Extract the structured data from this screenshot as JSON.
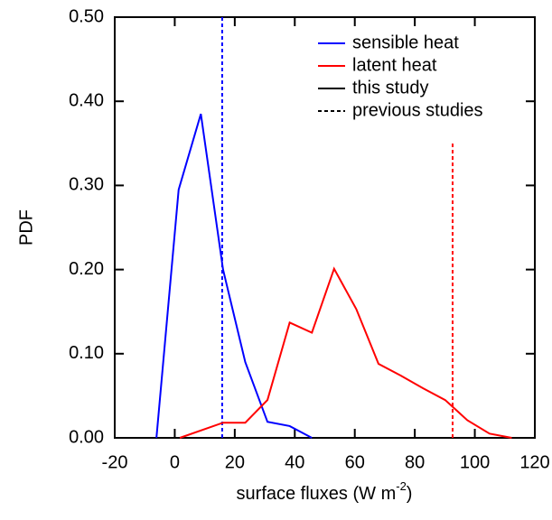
{
  "chart_data": {
    "type": "line",
    "x_label": {
      "text": "surface fluxes (W m",
      "superscript": "-2",
      "suffix": ")"
    },
    "y_label": "PDF",
    "series": [
      {
        "name": "sensible heat",
        "color": "#0000ff",
        "x": [
          -6.1,
          1.3,
          8.7,
          16.1,
          23.5,
          30.9,
          38.3,
          45.7
        ],
        "values": [
          0,
          0.295,
          0.385,
          0.2,
          0.09,
          0.019,
          0.014,
          0
        ]
      },
      {
        "name": "latent heat",
        "color": "#ff0000",
        "x": [
          1.7,
          16.1,
          23.5,
          30.9,
          38.3,
          45.7,
          53.1,
          60.5,
          67.9,
          75.3,
          82.7,
          90.1,
          97.5,
          104.9,
          112.3
        ],
        "values": [
          0,
          0.018,
          0.018,
          0.045,
          0.137,
          0.125,
          0.201,
          0.153,
          0.088,
          0.074,
          0.059,
          0.045,
          0.021,
          0.005,
          0
        ]
      }
    ],
    "reference_lines": [
      {
        "x": 15.8,
        "y": [
          0,
          0.5
        ],
        "color": "#0000ff"
      },
      {
        "x": 92.6,
        "y": [
          0,
          0.35
        ],
        "color": "#ff0000"
      }
    ],
    "legend_styles": [
      {
        "name": "this study",
        "color": "#000000",
        "dashed": false
      },
      {
        "name": "previous studies",
        "color": "#000000",
        "dashed": true
      }
    ],
    "legend": "upper right",
    "xlim": [
      -20,
      120
    ],
    "xticks": [
      -20,
      0,
      20,
      40,
      60,
      80,
      100,
      120
    ],
    "ylim": [
      0,
      0.5
    ],
    "yticks": [
      {
        "value": 0,
        "label": "0.00"
      },
      {
        "value": 0.1,
        "label": "0.10"
      },
      {
        "value": 0.2,
        "label": "0.20"
      },
      {
        "value": 0.3,
        "label": "0.30"
      },
      {
        "value": 0.4,
        "label": "0.40"
      },
      {
        "value": 0.5,
        "label": "0.50"
      }
    ]
  }
}
